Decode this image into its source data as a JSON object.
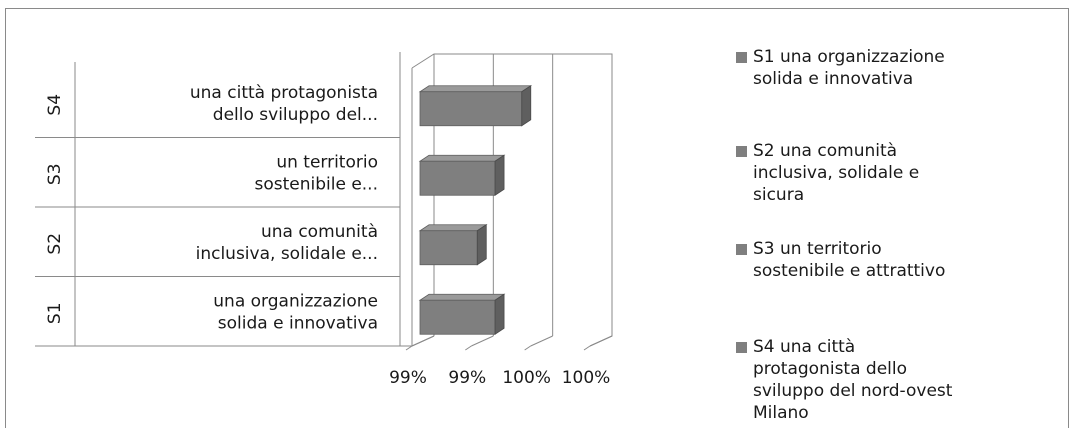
{
  "chart_data": {
    "type": "bar",
    "orientation": "horizontal",
    "three_d": true,
    "categories": [
      {
        "group": "S1",
        "label_lines": [
          "una organizzazione",
          "solida e innovativa"
        ]
      },
      {
        "group": "S2",
        "label_lines": [
          "una comunità",
          "inclusiva, solidale e..."
        ]
      },
      {
        "group": "S3",
        "label_lines": [
          "un territorio",
          "sostenibile e..."
        ]
      },
      {
        "group": "S4",
        "label_lines": [
          "una città protagonista",
          "dello sviluppo del..."
        ]
      }
    ],
    "values": [
      0.9968,
      0.9962,
      0.9968,
      0.9977
    ],
    "xlim": [
      0.994,
      1.0
    ],
    "xtick_labels": [
      "99%",
      "99%",
      "100%",
      "100%"
    ],
    "grid": true,
    "bar_color": "#7f7f7f",
    "legend": {
      "placement": "right",
      "entries": [
        {
          "lines": [
            "S1 una organizzazione",
            "solida e innovativa"
          ]
        },
        {
          "lines": [
            "S2 una comunità",
            "inclusiva, solidale e",
            "sicura"
          ]
        },
        {
          "lines": [
            "S3 un territorio",
            "sostenibile e attrattivo"
          ]
        },
        {
          "lines": [
            "S4 una città",
            "protagonista dello",
            "sviluppo del nord-ovest",
            "Milano"
          ]
        }
      ]
    }
  }
}
